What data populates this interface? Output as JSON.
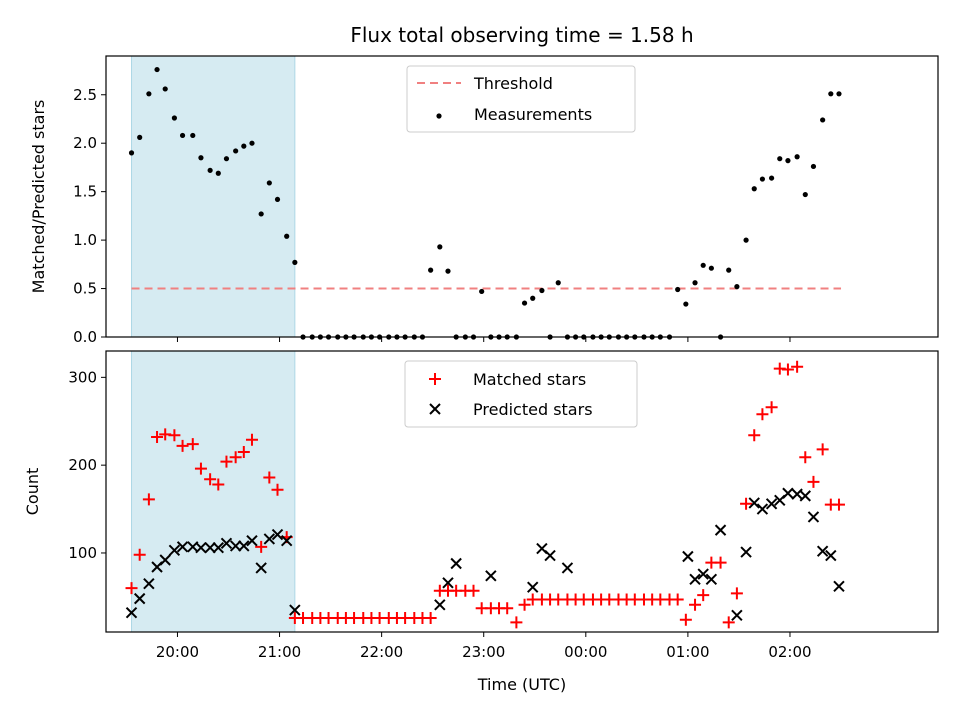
{
  "chart_data": [
    {
      "type": "scatter",
      "title": "Flux total observing time = 1.58 h",
      "xlabel": "",
      "ylabel": "Matched/Predicted stars",
      "ylim": [
        0,
        2.9
      ],
      "yticks": [
        "0.0",
        "0.5",
        "1.0",
        "1.5",
        "2.0",
        "2.5"
      ],
      "xlim_hours": [
        19.3,
        27.45
      ],
      "legend": {
        "position": "top-center",
        "entries": [
          "Threshold",
          "Measurements"
        ]
      },
      "highlight_span_hours": [
        19.55,
        21.15
      ],
      "threshold": {
        "name": "Threshold",
        "value": 0.5,
        "x_start_hours": 19.55,
        "x_end_hours": 26.5,
        "color": "#f08080"
      },
      "series": [
        {
          "name": "Measurements",
          "color": "#000000",
          "x_hours": [
            19.55,
            19.63,
            19.72,
            19.8,
            19.88,
            19.97,
            20.05,
            20.15,
            20.23,
            20.32,
            20.4,
            20.48,
            20.57,
            20.65,
            20.73,
            20.82,
            20.9,
            20.98,
            21.07,
            21.15,
            21.23,
            21.32,
            21.4,
            21.48,
            21.57,
            21.65,
            21.73,
            21.82,
            21.9,
            21.98,
            22.07,
            22.15,
            22.23,
            22.32,
            22.4,
            22.48,
            22.57,
            22.65,
            22.73,
            22.82,
            22.9,
            22.98,
            23.07,
            23.15,
            23.23,
            23.32,
            23.4,
            23.48,
            23.57,
            23.65,
            23.73,
            23.82,
            23.9,
            23.98,
            24.07,
            24.15,
            24.23,
            24.32,
            24.4,
            24.48,
            24.57,
            24.65,
            24.73,
            24.82,
            24.9,
            24.98,
            25.07,
            25.15,
            25.23,
            25.32,
            25.4,
            25.48,
            25.57,
            25.65,
            25.73,
            25.82,
            25.9,
            25.98,
            26.07,
            26.15,
            26.23,
            26.32,
            26.4,
            26.48
          ],
          "y": [
            1.9,
            2.06,
            2.51,
            2.76,
            2.56,
            2.26,
            2.08,
            2.08,
            1.85,
            1.72,
            1.69,
            1.84,
            1.92,
            1.97,
            2.0,
            1.27,
            1.59,
            1.42,
            1.04,
            0.77,
            0,
            0,
            0,
            0,
            0,
            0,
            0,
            0,
            0,
            0,
            0,
            0,
            0,
            0,
            0,
            0.69,
            0.93,
            0.68,
            0,
            0,
            0,
            0.47,
            0,
            0,
            0,
            0,
            0.35,
            0.4,
            0.48,
            0,
            0.56,
            0,
            0,
            0,
            0,
            0,
            0,
            0,
            0,
            0,
            0,
            0,
            0,
            0,
            0.49,
            0.34,
            0.56,
            0.74,
            0.71,
            0,
            0.69,
            0.52,
            1.0,
            1.53,
            1.63,
            1.64,
            1.84,
            1.82,
            1.86,
            1.47,
            1.76,
            2.24,
            2.51,
            2.51
          ]
        }
      ]
    },
    {
      "type": "scatter",
      "title": "",
      "xlabel": "Time (UTC)",
      "ylabel": "Count",
      "ylim": [
        10,
        330
      ],
      "yticks": [
        "100",
        "200",
        "300"
      ],
      "xticks": [
        "20:00",
        "21:00",
        "22:00",
        "23:00",
        "00:00",
        "01:00",
        "02:00"
      ],
      "xlim_hours": [
        19.3,
        27.45
      ],
      "legend": {
        "position": "top-center",
        "entries": [
          "Matched stars",
          "Predicted stars"
        ]
      },
      "highlight_span_hours": [
        19.55,
        21.15
      ],
      "series": [
        {
          "name": "Matched stars",
          "marker": "+",
          "color": "#ff0000",
          "x_hours": [
            19.55,
            19.63,
            19.72,
            19.8,
            19.88,
            19.97,
            20.05,
            20.15,
            20.23,
            20.32,
            20.4,
            20.48,
            20.57,
            20.65,
            20.73,
            20.82,
            20.9,
            20.98,
            21.07,
            21.15,
            21.23,
            21.32,
            21.4,
            21.48,
            21.57,
            21.65,
            21.73,
            21.82,
            21.9,
            21.98,
            22.07,
            22.15,
            22.23,
            22.32,
            22.4,
            22.48,
            22.57,
            22.65,
            22.73,
            22.82,
            22.9,
            22.98,
            23.07,
            23.15,
            23.23,
            23.32,
            23.4,
            23.48,
            23.57,
            23.65,
            23.73,
            23.82,
            23.9,
            23.98,
            24.07,
            24.15,
            24.23,
            24.32,
            24.4,
            24.48,
            24.57,
            24.65,
            24.73,
            24.82,
            24.9,
            24.98,
            25.07,
            25.15,
            25.23,
            25.32,
            25.4,
            25.48,
            25.57,
            25.65,
            25.73,
            25.82,
            25.9,
            25.98,
            26.07,
            26.15,
            26.23,
            26.32,
            26.4,
            26.48
          ],
          "y": [
            60,
            98,
            161,
            232,
            235,
            234,
            222,
            224,
            196,
            184,
            178,
            204,
            209,
            215,
            229,
            107,
            186,
            172,
            118,
            26,
            26,
            26,
            26,
            26,
            26,
            26,
            26,
            26,
            26,
            26,
            26,
            26,
            26,
            26,
            26,
            26,
            57,
            57,
            57,
            57,
            57,
            37,
            37,
            37,
            37,
            21,
            41,
            47,
            47,
            47,
            47,
            47,
            47,
            47,
            47,
            47,
            47,
            47,
            47,
            47,
            47,
            47,
            47,
            47,
            47,
            24,
            41,
            52,
            89,
            89,
            21,
            54,
            156,
            234,
            258,
            266,
            310,
            309,
            312,
            209,
            181,
            218,
            155,
            155
          ]
        },
        {
          "name": "Predicted stars",
          "marker": "x",
          "color": "#000000",
          "x_hours": [
            19.55,
            19.63,
            19.72,
            19.8,
            19.88,
            19.97,
            20.05,
            20.15,
            20.23,
            20.32,
            20.4,
            20.48,
            20.57,
            20.65,
            20.73,
            20.82,
            20.9,
            20.98,
            21.07,
            21.15,
            22.57,
            22.65,
            22.73,
            23.07,
            23.48,
            23.57,
            23.65,
            23.82,
            25.0,
            25.07,
            25.15,
            25.23,
            25.32,
            25.48,
            25.57,
            25.65,
            25.73,
            25.82,
            25.9,
            25.98,
            26.07,
            26.15,
            26.23,
            26.32,
            26.4,
            26.48
          ],
          "y": [
            32,
            48,
            65,
            84,
            92,
            103,
            107,
            107,
            106,
            106,
            106,
            111,
            108,
            108,
            114,
            83,
            116,
            121,
            114,
            35,
            41,
            66,
            88,
            74,
            61,
            105,
            97,
            83,
            96,
            70,
            76,
            70,
            126,
            29,
            101,
            157,
            150,
            156,
            160,
            168,
            167,
            165,
            141,
            102,
            97,
            62
          ]
        }
      ]
    }
  ]
}
